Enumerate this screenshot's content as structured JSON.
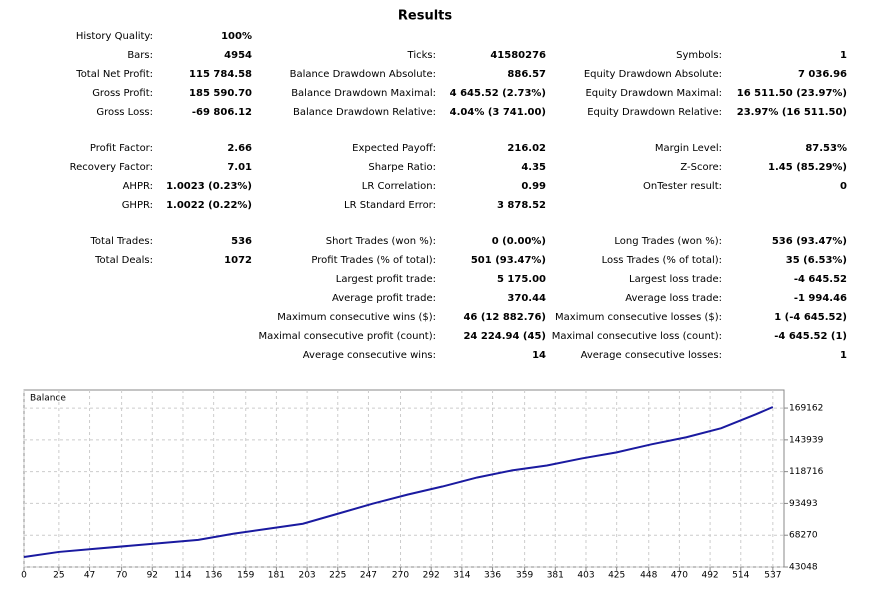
{
  "report": {
    "title": "Results",
    "groups": [
      [
        {
          "left": {
            "label": "History Quality:",
            "value": "100%"
          }
        },
        {
          "left": {
            "label": "Bars:",
            "value": "4954"
          },
          "middle": {
            "label": "Ticks:",
            "value": "41580276"
          },
          "right": {
            "label": "Symbols:",
            "value": "1"
          }
        },
        {
          "left": {
            "label": "Total Net Profit:",
            "value": "115 784.58"
          },
          "middle": {
            "label": "Balance Drawdown Absolute:",
            "value": "886.57"
          },
          "right": {
            "label": "Equity Drawdown Absolute:",
            "value": "7 036.96"
          }
        },
        {
          "left": {
            "label": "Gross Profit:",
            "value": "185 590.70"
          },
          "middle": {
            "label": "Balance Drawdown Maximal:",
            "value": "4 645.52 (2.73%)"
          },
          "right": {
            "label": "Equity Drawdown Maximal:",
            "value": "16 511.50 (23.97%)"
          }
        },
        {
          "left": {
            "label": "Gross Loss:",
            "value": "-69 806.12"
          },
          "middle": {
            "label": "Balance Drawdown Relative:",
            "value": "4.04% (3 741.00)"
          },
          "right": {
            "label": "Equity Drawdown Relative:",
            "value": "23.97% (16 511.50)"
          }
        }
      ],
      [
        {
          "left": {
            "label": "Profit Factor:",
            "value": "2.66"
          },
          "middle": {
            "label": "Expected Payoff:",
            "value": "216.02"
          },
          "right": {
            "label": "Margin Level:",
            "value": "87.53%"
          }
        },
        {
          "left": {
            "label": "Recovery Factor:",
            "value": "7.01"
          },
          "middle": {
            "label": "Sharpe Ratio:",
            "value": "4.35"
          },
          "right": {
            "label": "Z-Score:",
            "value": "1.45 (85.29%)"
          }
        },
        {
          "left": {
            "label": "AHPR:",
            "value": "1.0023 (0.23%)"
          },
          "middle": {
            "label": "LR Correlation:",
            "value": "0.99"
          },
          "right": {
            "label": "OnTester result:",
            "value": "0"
          }
        },
        {
          "left": {
            "label": "GHPR:",
            "value": "1.0022 (0.22%)"
          },
          "middle": {
            "label": "LR Standard Error:",
            "value": "3 878.52"
          }
        }
      ],
      [
        {
          "left": {
            "label": "Total Trades:",
            "value": "536"
          },
          "middle": {
            "label": "Short Trades (won %):",
            "value": "0 (0.00%)"
          },
          "right": {
            "label": "Long Trades (won %):",
            "value": "536 (93.47%)"
          }
        },
        {
          "left": {
            "label": "Total Deals:",
            "value": "1072"
          },
          "middle": {
            "label": "Profit Trades (% of total):",
            "value": "501 (93.47%)"
          },
          "right": {
            "label": "Loss Trades (% of total):",
            "value": "35 (6.53%)"
          }
        },
        {
          "middle": {
            "label": "Largest profit trade:",
            "value": "5 175.00"
          },
          "right": {
            "label": "Largest loss trade:",
            "value": "-4 645.52"
          }
        },
        {
          "middle": {
            "label": "Average profit trade:",
            "value": "370.44"
          },
          "right": {
            "label": "Average loss trade:",
            "value": "-1 994.46"
          }
        },
        {
          "middle": {
            "label": "Maximum consecutive wins ($):",
            "value": "46 (12 882.76)"
          },
          "right": {
            "label": "Maximum consecutive losses ($):",
            "value": "1 (-4 645.52)"
          }
        },
        {
          "middle": {
            "label": "Maximal consecutive profit (count):",
            "value": "24 224.94 (45)"
          },
          "right": {
            "label": "Maximal consecutive loss (count):",
            "value": "-4 645.52 (1)"
          }
        },
        {
          "middle": {
            "label": "Average consecutive wins:",
            "value": "14"
          },
          "right": {
            "label": "Average consecutive losses:",
            "value": "1"
          }
        }
      ]
    ]
  },
  "chart_data": {
    "type": "line",
    "title": "Balance",
    "x": [
      0,
      25,
      50,
      75,
      100,
      125,
      150,
      175,
      200,
      225,
      250,
      275,
      300,
      325,
      350,
      375,
      400,
      425,
      450,
      475,
      500,
      525,
      537
    ],
    "series": [
      {
        "color": "#1a1aa0",
        "values": [
          51000,
          55000,
          57400,
          59800,
          62200,
          64600,
          69400,
          73400,
          77400,
          85300,
          93300,
          100500,
          106900,
          114100,
          119700,
          123600,
          129200,
          134000,
          140400,
          146000,
          153200,
          164300,
          170000
        ]
      }
    ],
    "xlim": [
      0,
      545
    ],
    "ylim": [
      43048,
      183500
    ],
    "xticks": [
      0,
      25,
      47,
      70,
      92,
      114,
      136,
      159,
      181,
      203,
      225,
      247,
      270,
      292,
      314,
      336,
      359,
      381,
      403,
      425,
      448,
      470,
      492,
      514,
      537
    ],
    "yticks": [
      43048,
      68270,
      93493,
      118716,
      143939,
      169162
    ],
    "grid": true
  }
}
